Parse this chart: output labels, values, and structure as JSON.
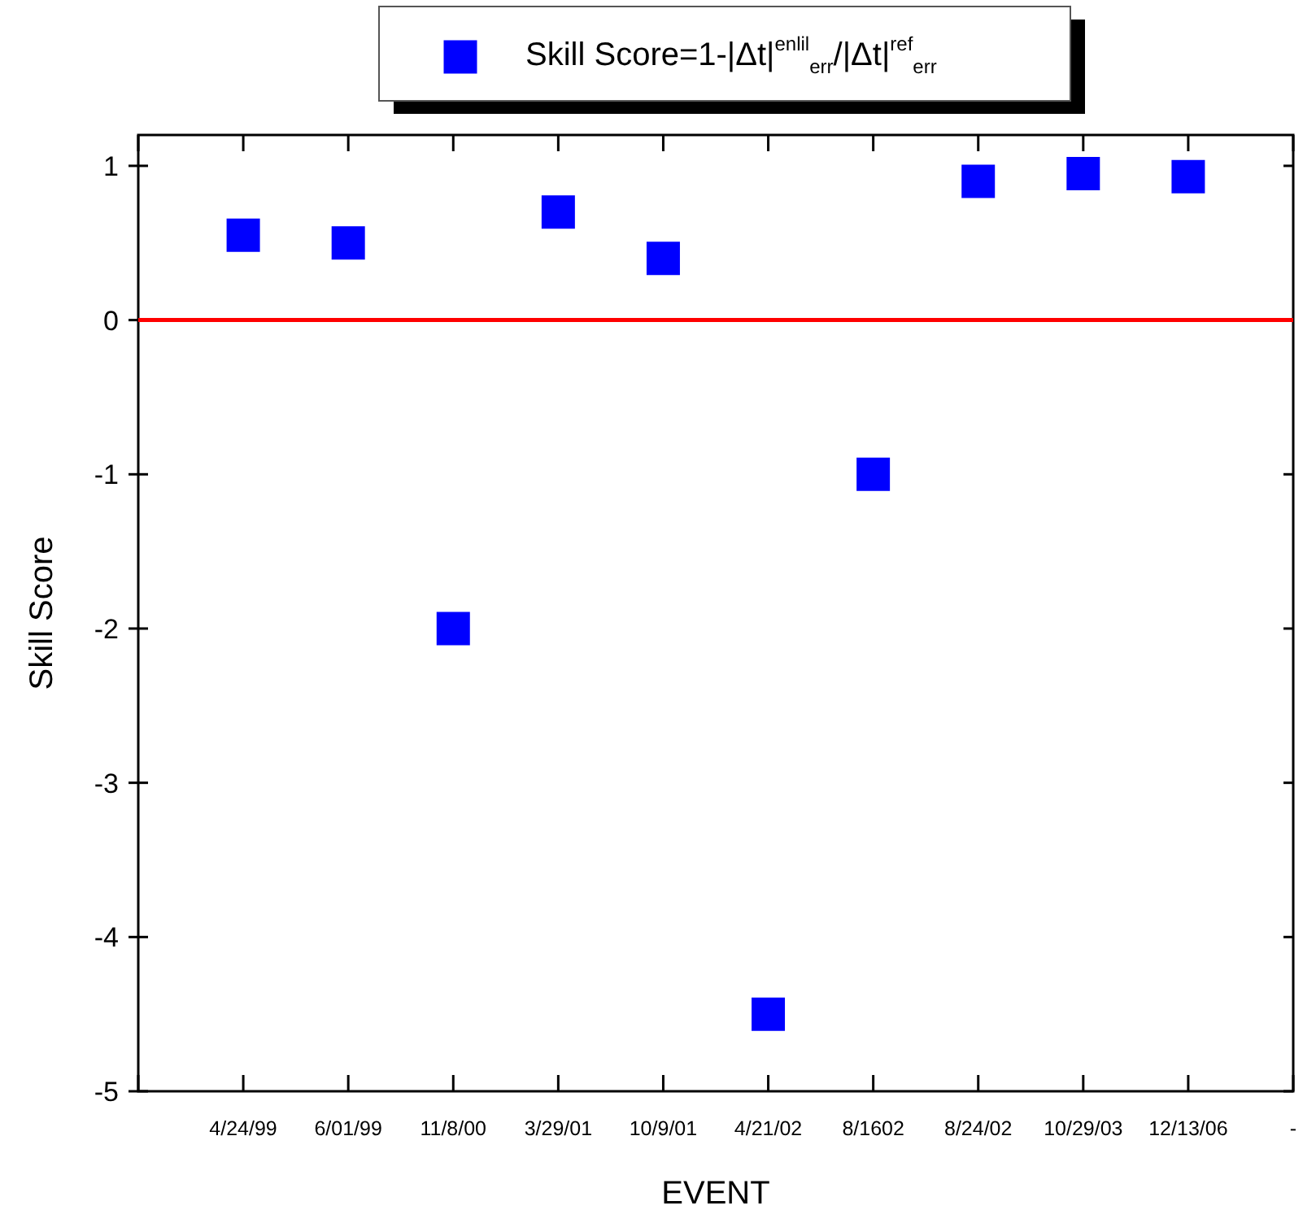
{
  "chart_data": {
    "type": "scatter",
    "xlabel": "EVENT",
    "ylabel": "Skill Score",
    "categories": [
      null,
      "4/24/99",
      "6/01/99",
      "11/8/00",
      "3/29/01",
      "10/9/01",
      "4/21/02",
      "8/1602",
      "8/24/02",
      "10/29/03",
      "12/13/06",
      "-"
    ],
    "series": [
      {
        "name": "Skill Score=1-|Δt|$^{enlil}$$_{err}$/|Δt|$^{ref}$$_{err}$",
        "color": "#0000ff",
        "values": [
          null,
          0.55,
          0.5,
          -2.0,
          0.7,
          0.4,
          -4.5,
          -1.0,
          0.9,
          0.95,
          0.93,
          null
        ]
      }
    ],
    "ylim": [
      -5,
      1.2
    ],
    "yticks": [
      -5,
      -4,
      -3,
      -2,
      -1,
      0,
      1
    ],
    "ref_lines": [
      {
        "axis": "y",
        "value": 0,
        "color": "#ff0000"
      }
    ],
    "marker": "square",
    "legend": "top",
    "grid": false
  }
}
